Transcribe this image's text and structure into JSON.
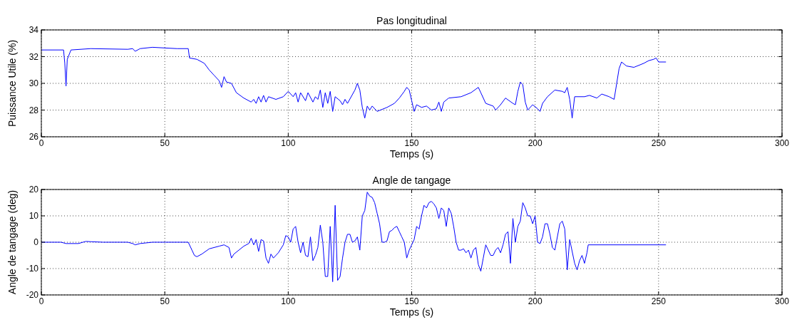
{
  "chart_data": [
    {
      "type": "line",
      "title": "Pas longitudinal",
      "xlabel": "Temps (s)",
      "ylabel": "Puissance Utile (%)",
      "xlim": [
        0,
        300
      ],
      "ylim": [
        26,
        34
      ],
      "xticks": [
        0,
        50,
        100,
        150,
        200,
        250,
        300
      ],
      "yticks": [
        26,
        28,
        30,
        32,
        34
      ],
      "grid": true,
      "line_style": "solid",
      "marker": "none",
      "series": [
        {
          "color": "#0000ff",
          "x": [
            0,
            9,
            9.5,
            10,
            10.5,
            12,
            20,
            35,
            37,
            38,
            40,
            45,
            55,
            59.5,
            60,
            63,
            66,
            68,
            70,
            72,
            73,
            74,
            75,
            77,
            79,
            82,
            85,
            86,
            87,
            88,
            89,
            90,
            91,
            92,
            95,
            98,
            100,
            102,
            103,
            104,
            105,
            107,
            108,
            110,
            111,
            112,
            113,
            114,
            115,
            116,
            117,
            118,
            119,
            121,
            122,
            123,
            124,
            127,
            128,
            129,
            130,
            131,
            132,
            133,
            134,
            136,
            140,
            143,
            145,
            147,
            148,
            149,
            150,
            151,
            152,
            154,
            156,
            158,
            160,
            161,
            162,
            163,
            165,
            170,
            174,
            177,
            178,
            180,
            183,
            184,
            186,
            188,
            191,
            192,
            193,
            194,
            195,
            196,
            197,
            199,
            201,
            202,
            203,
            205,
            208,
            211,
            212,
            213,
            214,
            215,
            216,
            220,
            222,
            225,
            227,
            230,
            232,
            234,
            235,
            237,
            240,
            244,
            246,
            248,
            249,
            250,
            253
          ],
          "values": [
            32.5,
            32.5,
            31.5,
            29.8,
            31.8,
            32.5,
            32.6,
            32.55,
            32.6,
            32.4,
            32.6,
            32.7,
            32.6,
            32.6,
            31.9,
            31.8,
            31.5,
            31.0,
            30.6,
            30.2,
            29.7,
            30.5,
            30.1,
            30.0,
            29.3,
            28.9,
            28.6,
            28.8,
            28.5,
            29.0,
            28.6,
            29.1,
            28.6,
            29.0,
            28.8,
            29.0,
            29.4,
            29.0,
            29.3,
            28.6,
            29.3,
            28.7,
            29.3,
            28.6,
            29.0,
            28.8,
            29.5,
            28.2,
            29.3,
            28.5,
            29.4,
            27.9,
            29.0,
            28.7,
            28.4,
            28.8,
            28.5,
            29.5,
            30.0,
            29.5,
            28.2,
            27.4,
            28.3,
            28.0,
            28.3,
            27.9,
            28.2,
            28.5,
            28.9,
            29.4,
            29.7,
            29.5,
            28.7,
            27.9,
            28.4,
            28.2,
            28.3,
            28.0,
            28.1,
            28.6,
            27.9,
            28.6,
            28.9,
            29.0,
            29.3,
            29.7,
            29.3,
            28.5,
            28.3,
            28.0,
            28.4,
            28.9,
            28.5,
            28.4,
            29.4,
            30.1,
            29.9,
            28.6,
            28.0,
            28.4,
            28.1,
            27.9,
            28.5,
            29.0,
            29.5,
            29.4,
            29.3,
            29.7,
            28.8,
            27.4,
            29.0,
            29.0,
            29.1,
            28.9,
            29.2,
            29.0,
            28.8,
            31.1,
            31.6,
            31.3,
            31.2,
            31.5,
            31.7,
            31.8,
            31.9,
            31.6,
            31.6
          ]
        }
      ]
    },
    {
      "type": "line",
      "title": "Angle de tangage",
      "xlabel": "Temps (s)",
      "ylabel": "Angle de tangage (deg)",
      "xlim": [
        0,
        300
      ],
      "ylim": [
        -20,
        20
      ],
      "xticks": [
        0,
        50,
        100,
        150,
        200,
        250,
        300
      ],
      "yticks": [
        -20,
        -10,
        0,
        10,
        20
      ],
      "grid": true,
      "line_style": "solid",
      "marker": "none",
      "series": [
        {
          "color": "#0000ff",
          "x": [
            0,
            8,
            10,
            15,
            18,
            20,
            25,
            35,
            37,
            38,
            40,
            45,
            50,
            59.5,
            61,
            62,
            63,
            65,
            68,
            72,
            74,
            76,
            77,
            78,
            80,
            82,
            84,
            85,
            86,
            87,
            88,
            89,
            90,
            91,
            92,
            93,
            94,
            96,
            98,
            99,
            100,
            101,
            102,
            103,
            104,
            105,
            106,
            107,
            108,
            109,
            110,
            111,
            112,
            113,
            114,
            115,
            116,
            117,
            118,
            119,
            120,
            121,
            122,
            123,
            124,
            125,
            126,
            127,
            128,
            129,
            130,
            131,
            132,
            133,
            134,
            135,
            136,
            137,
            138,
            139,
            140,
            141,
            142,
            143,
            144,
            145,
            146,
            147,
            148,
            149,
            150,
            151,
            152,
            153,
            154,
            155,
            156,
            157,
            158,
            159,
            160,
            161,
            162,
            163,
            164,
            165,
            166,
            167,
            168,
            169,
            170,
            171,
            172,
            173,
            174,
            175,
            176,
            177,
            178,
            179,
            180,
            181,
            182,
            183,
            184,
            185,
            186,
            187,
            188,
            189,
            190,
            191,
            192,
            193,
            194,
            195,
            196,
            197,
            198,
            199,
            200,
            201,
            202,
            203,
            204,
            205,
            206,
            207,
            208,
            210,
            211,
            212,
            213,
            214,
            215,
            216,
            217,
            218,
            219,
            220,
            221,
            221.5,
            253
          ],
          "values": [
            0,
            0,
            -0.5,
            -0.5,
            0.3,
            0.2,
            0,
            0,
            -0.5,
            -1,
            -0.5,
            0,
            0,
            0,
            -3,
            -5,
            -5.5,
            -4.5,
            -2.5,
            -1.5,
            -1,
            -2,
            -6,
            -4.5,
            -3,
            -1.5,
            -0.5,
            1.5,
            -1,
            1,
            -3.5,
            1,
            0.5,
            -6,
            -8,
            -4.5,
            -6,
            -4,
            -1,
            2.5,
            2,
            0,
            5,
            6,
            0,
            -4,
            0,
            -5,
            -5.5,
            2,
            -7,
            -5,
            -2,
            6.5,
            0,
            -13,
            -13,
            6,
            -15,
            14,
            -14.5,
            -13,
            -6,
            0,
            3,
            3,
            0,
            0.5,
            2,
            -3,
            10,
            12,
            19,
            17.5,
            17,
            15,
            11,
            7,
            0,
            0,
            0.5,
            4,
            4.5,
            5.5,
            6,
            4,
            2,
            0,
            -6,
            -3,
            -1,
            1,
            6,
            5,
            10,
            14,
            13,
            15,
            15.5,
            14.5,
            13,
            9,
            13,
            12,
            6,
            13,
            11,
            6,
            0,
            -3,
            -3,
            -2.5,
            -4,
            -3,
            -6,
            -3,
            -2,
            -8.5,
            -11,
            -6,
            -1,
            -3,
            -5,
            -5,
            -3,
            -2,
            -4,
            -1,
            3,
            4,
            -8,
            9,
            0,
            6,
            8,
            15,
            13,
            10,
            10,
            7,
            10,
            0,
            -0.5,
            2,
            7,
            7,
            3,
            -2,
            -3,
            7,
            8,
            5,
            -10.5,
            1,
            -3.5,
            -8,
            -10.5,
            -7,
            -5,
            -8,
            -4,
            -1,
            -1
          ]
        }
      ]
    }
  ]
}
